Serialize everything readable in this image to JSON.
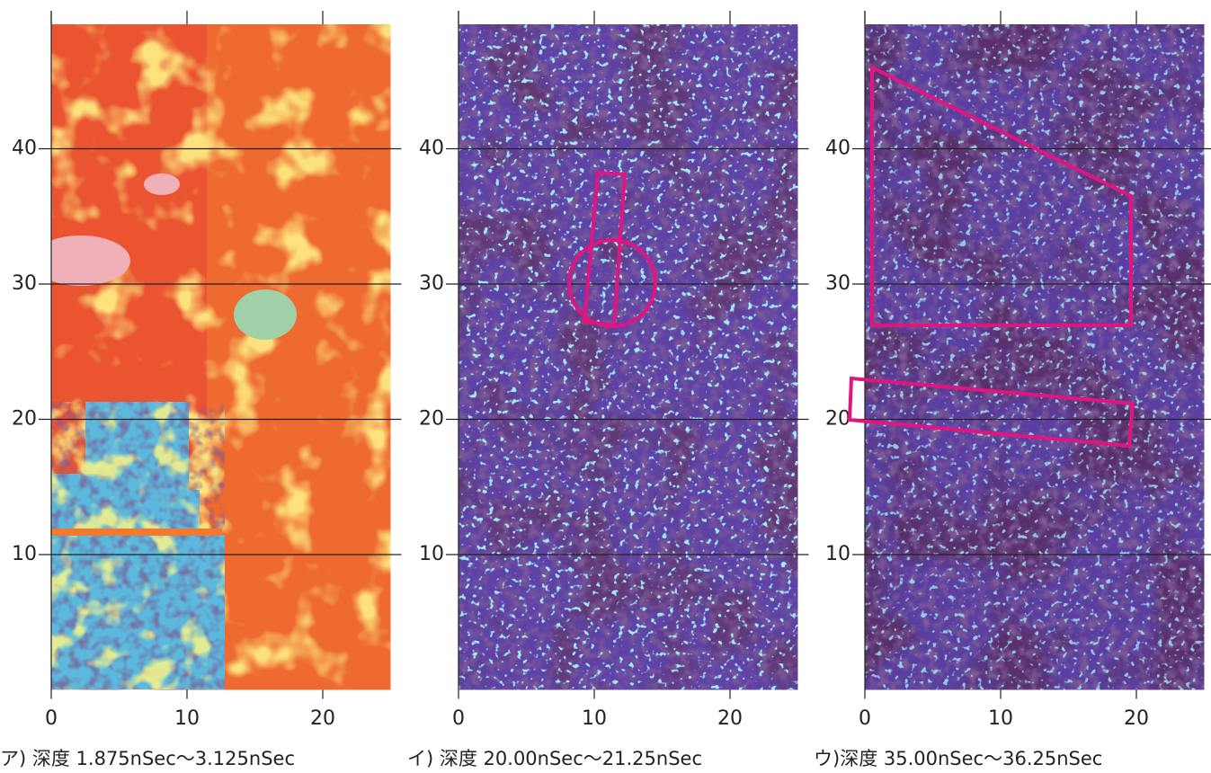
{
  "chart_data": [
    {
      "type": "heatmap",
      "caption": "ア) 深度 1.875nSec～3.125nSec",
      "xlim": [
        0,
        25
      ],
      "ylim": [
        0,
        49.2
      ],
      "xticks": [
        0,
        10,
        20
      ],
      "yticks": [
        10,
        20,
        30,
        40
      ]
    },
    {
      "type": "heatmap",
      "caption": "イ) 深度 20.00nSec～21.25nSec",
      "xlim": [
        0,
        25
      ],
      "ylim": [
        0,
        49.2
      ],
      "xticks": [
        0,
        10,
        20
      ],
      "yticks": [
        10,
        20,
        30,
        40
      ]
    },
    {
      "type": "heatmap",
      "caption": "ウ)深度 35.00nSec～36.25nSec",
      "xlim": [
        0,
        25
      ],
      "ylim": [
        0,
        49.2
      ],
      "xticks": [
        0,
        10,
        20
      ],
      "yticks": [
        10,
        20,
        30,
        40
      ]
    }
  ]
}
